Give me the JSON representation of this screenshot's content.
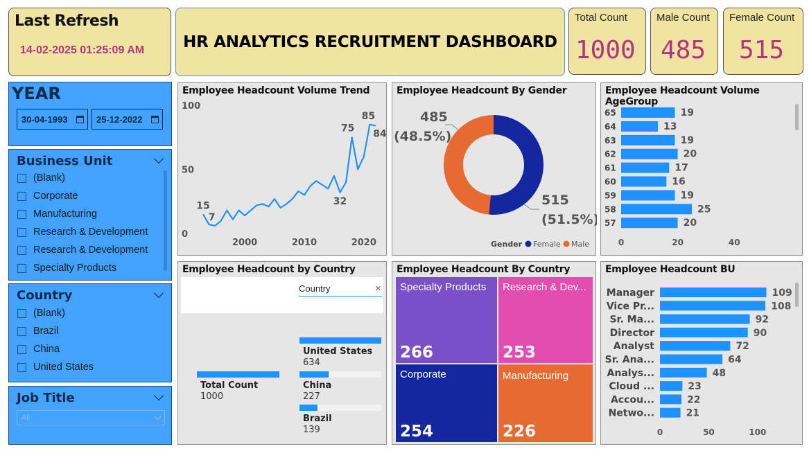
{
  "refresh": {
    "label": "Last Refresh",
    "value": "14-02-2025 01:25:09 AM"
  },
  "dashboard_title": "HR ANALYTICS RECRUITMENT DASHBOARD",
  "kpis": {
    "total": {
      "label": "Total Count",
      "value": "1000"
    },
    "male": {
      "label": "Male Count",
      "value": "485"
    },
    "female": {
      "label": "Female Count",
      "value": "515"
    }
  },
  "year_filter": {
    "label": "YEAR",
    "start": "30-04-1993",
    "end": "25-12-2022"
  },
  "business_unit_filter": {
    "label": "Business Unit",
    "items": [
      "(Blank)",
      "Corporate",
      "Manufacturing",
      "Research & Development",
      "Research & Development",
      "Specialty Products"
    ]
  },
  "country_filter": {
    "label": "Country",
    "items": [
      "(Blank)",
      "Brazil",
      "China",
      "United States"
    ]
  },
  "job_title_filter": {
    "label": "Job Title",
    "selected": "All"
  },
  "colors": {
    "blue": "#1e90ff",
    "navy": "#1426a0",
    "orange": "#e86a33",
    "purple": "#7b4fc8",
    "pink": "#e24bb0",
    "accent": "#b0357f"
  },
  "trend_chart": {
    "title": "Employee Headcount Volume Trend",
    "chart_data": {
      "type": "line",
      "x": [
        1993,
        1994,
        1995,
        1996,
        1997,
        1998,
        1999,
        2000,
        2001,
        2002,
        2003,
        2004,
        2005,
        2006,
        2007,
        2008,
        2009,
        2010,
        2011,
        2012,
        2013,
        2014,
        2015,
        2016,
        2017,
        2018,
        2019,
        2020,
        2021,
        2022
      ],
      "values": [
        15,
        7,
        6,
        10,
        18,
        11,
        18,
        14,
        18,
        22,
        23,
        21,
        27,
        20,
        23,
        27,
        33,
        30,
        37,
        41,
        38,
        35,
        45,
        32,
        40,
        75,
        50,
        60,
        85,
        84
      ],
      "ylim": [
        0,
        100
      ],
      "y_ticks": [
        "100",
        "50",
        "0"
      ],
      "x_ticks": [
        "2000",
        "2010",
        "2020"
      ],
      "labels": [
        {
          "x": 1993,
          "y": 15,
          "text": "15"
        },
        {
          "x": 1994,
          "y": 7,
          "text": "7"
        },
        {
          "x": 2016,
          "y": 32,
          "text": "32"
        },
        {
          "x": 2018,
          "y": 75,
          "text": "75"
        },
        {
          "x": 2021,
          "y": 85,
          "text": "85"
        },
        {
          "x": 2022,
          "y": 84,
          "text": "84"
        }
      ]
    }
  },
  "gender_chart": {
    "title": "Employee Headcount By Gender",
    "chart_data": {
      "type": "pie",
      "categories": [
        "Female",
        "Male"
      ],
      "values": [
        515,
        485
      ],
      "value_labels": [
        "515",
        "485"
      ],
      "percent_labels": [
        "(51.5%)",
        "(48.5%)"
      ],
      "legend_title": "Gender",
      "legend_placement": "bottom-right"
    }
  },
  "age_chart": {
    "title": "Employee Headcount Volume AgeGroup",
    "chart_data": {
      "type": "bar",
      "categories": [
        "65",
        "64",
        "63",
        "62",
        "61",
        "60",
        "59",
        "58",
        "57"
      ],
      "values": [
        19,
        13,
        19,
        20,
        17,
        16,
        19,
        25,
        20
      ],
      "value_labels": [
        "19",
        "13",
        "19",
        "20",
        "17",
        "16",
        "19",
        "25",
        "20"
      ],
      "xlim": [
        0,
        50
      ],
      "x_ticks": [
        "0",
        "20",
        "40"
      ]
    }
  },
  "country_tree": {
    "title": "Employee Headcount by Country",
    "filter_placeholder": "Country",
    "clear": "×",
    "root": {
      "label": "Total Count",
      "value": "1000"
    },
    "chart_data": {
      "type": "bar",
      "categories": [
        "United States",
        "China",
        "Brazil"
      ],
      "values": [
        634,
        227,
        139
      ],
      "value_labels": [
        "634",
        "227",
        "139"
      ]
    }
  },
  "treemap": {
    "title": "Employee Headcount By Country",
    "chart_data": {
      "type": "treemap",
      "categories": [
        "Specialty Products",
        "Research & Dev...",
        "Corporate",
        "Manufacturing"
      ],
      "values": [
        266,
        253,
        254,
        226
      ],
      "value_labels": [
        "266",
        "253",
        "254",
        "226"
      ]
    }
  },
  "bu_chart": {
    "title": "Employee Headcount BU",
    "chart_data": {
      "type": "bar",
      "categories": [
        "Manager",
        "Vice Pr...",
        "Sr. Ma...",
        "Director",
        "Analyst",
        "Sr. Ana...",
        "Analys...",
        "Cloud ...",
        "Accou...",
        "Netwo..."
      ],
      "values": [
        109,
        108,
        92,
        90,
        72,
        64,
        48,
        23,
        22,
        21
      ],
      "value_labels": [
        "109",
        "108",
        "92",
        "90",
        "72",
        "64",
        "48",
        "23",
        "22",
        "21"
      ],
      "xlim": [
        0,
        120
      ],
      "x_ticks": [
        "0",
        "50",
        "100"
      ]
    }
  }
}
